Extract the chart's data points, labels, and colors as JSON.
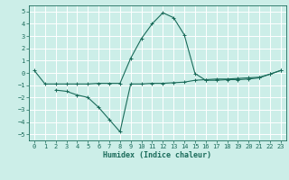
{
  "xlabel": "Humidex (Indice chaleur)",
  "background_color": "#cceee8",
  "grid_color": "#ffffff",
  "line_color": "#1a6b5a",
  "ylim": [
    -5.5,
    5.5
  ],
  "xlim": [
    -0.5,
    23.5
  ],
  "yticks": [
    -5,
    -4,
    -3,
    -2,
    -1,
    0,
    1,
    2,
    3,
    4,
    5
  ],
  "xticks": [
    0,
    1,
    2,
    3,
    4,
    5,
    6,
    7,
    8,
    9,
    10,
    11,
    12,
    13,
    14,
    15,
    16,
    17,
    18,
    19,
    20,
    21,
    22,
    23
  ],
  "line1_x": [
    0,
    1,
    2,
    3,
    4,
    5,
    6,
    7,
    8,
    9,
    10,
    11,
    12,
    13,
    14,
    15,
    16,
    17,
    18,
    19,
    20,
    21,
    22,
    23
  ],
  "line1_y": [
    0.2,
    -0.9,
    -0.9,
    -0.9,
    -0.9,
    -0.9,
    -0.85,
    -0.85,
    -0.85,
    1.2,
    2.8,
    4.0,
    4.9,
    4.5,
    3.1,
    -0.05,
    -0.6,
    -0.6,
    -0.55,
    -0.55,
    -0.5,
    -0.4,
    -0.1,
    0.2
  ],
  "line2_x": [
    2,
    3,
    4,
    5,
    6,
    7,
    8,
    9,
    10,
    11,
    12,
    13,
    14,
    15,
    16,
    17,
    18,
    19,
    20,
    21,
    22,
    23
  ],
  "line2_y": [
    -1.4,
    -1.5,
    -1.8,
    -2.0,
    -2.8,
    -3.8,
    -4.8,
    -0.9,
    -0.9,
    -0.85,
    -0.85,
    -0.8,
    -0.75,
    -0.6,
    -0.55,
    -0.5,
    -0.5,
    -0.45,
    -0.4,
    -0.35,
    -0.1,
    0.2
  ],
  "tick_fontsize": 5.0,
  "xlabel_fontsize": 6.0
}
